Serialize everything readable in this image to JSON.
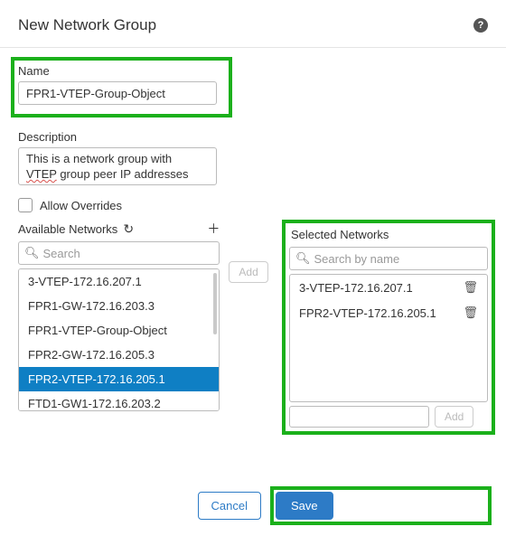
{
  "dialog": {
    "title": "New Network Group"
  },
  "fields": {
    "name": {
      "label": "Name",
      "value": "FPR1-VTEP-Group-Object"
    },
    "description": {
      "label": "Description",
      "line1": "This is a network group with",
      "line2_pre": "VTEP",
      "line2_post": " group peer IP addresses"
    },
    "allow_overrides": {
      "label": "Allow Overrides",
      "checked": false
    }
  },
  "available": {
    "header": "Available Networks",
    "search_placeholder": "Search",
    "items": [
      "3-VTEP-172.16.207.1",
      "FPR1-GW-172.16.203.3",
      "FPR1-VTEP-Group-Object",
      "FPR2-GW-172.16.205.3",
      "FPR2-VTEP-172.16.205.1",
      "FTD1-GW1-172.16.203.2"
    ],
    "selected_index": 4
  },
  "mid": {
    "add_label": "Add"
  },
  "selected": {
    "header": "Selected Networks",
    "search_placeholder": "Search by name",
    "items": [
      "3-VTEP-172.16.207.1",
      "FPR2-VTEP-172.16.205.1"
    ],
    "add_label": "Add",
    "add_input_value": ""
  },
  "footer": {
    "cancel": "Cancel",
    "save": "Save"
  },
  "colors": {
    "highlight_border": "#1bb01b",
    "primary": "#2d7bc6",
    "selected_row": "#0f7fc4"
  }
}
